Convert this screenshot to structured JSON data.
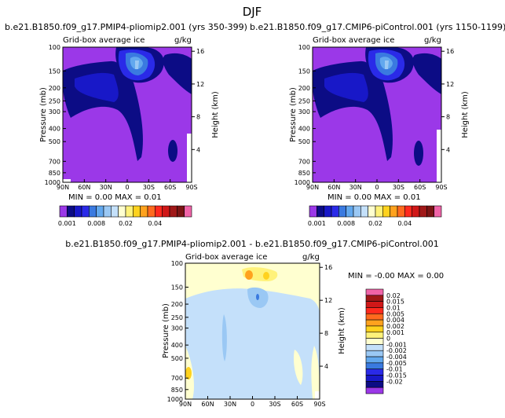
{
  "figure": {
    "season": "DJF",
    "panel1_title": "b.e21.B1850.f09_g17.PMIP4-pliomip2.001 (yrs 350-399)",
    "panel2_title": "b.e21.B1850.f09_g17.CMIP6-piControl.001 (yrs 1150-1199)",
    "diff_title": "b.e21.B1850.f09_g17.PMIP4-pliomip2.001 - b.e21.B1850.f09_g17.CMIP6-piControl.001",
    "subtitle": "Grid-box average ice",
    "units": "g/kg",
    "ylabel_left": "Pressure (mb)",
    "ylabel_right": "Height (km)",
    "panel1_minmax": "MIN =    0.00   MAX =    0.01",
    "panel2_minmax": "MIN =    0.00   MAX =    0.01",
    "diff_minmax": "MIN =   -0.00   MAX =    0.00"
  },
  "chart_data": [
    {
      "type": "heatmap",
      "name": "pliomip2",
      "title": "b.e21.B1850.f09_g17.PMIP4-pliomip2.001 (yrs 350-399)",
      "subtitle": "Grid-box average ice",
      "x_ticks": [
        "90N",
        "60N",
        "30N",
        "0",
        "30S",
        "60S",
        "90S"
      ],
      "x_values": [
        90,
        60,
        30,
        0,
        -30,
        -60,
        -90
      ],
      "y_ticks": [
        "100",
        "150",
        "200",
        "250",
        "300",
        "400",
        "500",
        "700",
        "850",
        "1000"
      ],
      "y_values": [
        100,
        150,
        200,
        250,
        300,
        400,
        500,
        700,
        850,
        1000
      ],
      "height_ticks": [
        "16",
        "12",
        "8",
        "4"
      ],
      "height_values": [
        16,
        12,
        8,
        4
      ],
      "min": 0.0,
      "max": 0.01,
      "colorbar_labels": [
        "0.001",
        "0.008",
        "0.02",
        "0.04"
      ],
      "colorbar_colors": [
        "#9b38e8",
        "#0c0c85",
        "#1818c8",
        "#2a2ae8",
        "#3a7ae0",
        "#62a8ee",
        "#9ac8f4",
        "#c4e0fa",
        "#ffffd0",
        "#fff27a",
        "#ffd21e",
        "#ffa21e",
        "#ff6a1e",
        "#ff2a1e",
        "#d01818",
        "#a01818",
        "#7a1414",
        "#f064a8"
      ]
    },
    {
      "type": "heatmap",
      "name": "piControl",
      "title": "b.e21.B1850.f09_g17.CMIP6-piControl.001 (yrs 1150-1199)",
      "subtitle": "Grid-box average ice",
      "x_ticks": [
        "90N",
        "60N",
        "30N",
        "0",
        "30S",
        "60S",
        "90S"
      ],
      "x_values": [
        90,
        60,
        30,
        0,
        -30,
        -60,
        -90
      ],
      "y_ticks": [
        "100",
        "150",
        "200",
        "250",
        "300",
        "400",
        "500",
        "700",
        "850",
        "1000"
      ],
      "y_values": [
        100,
        150,
        200,
        250,
        300,
        400,
        500,
        700,
        850,
        1000
      ],
      "height_ticks": [
        "16",
        "12",
        "8",
        "4"
      ],
      "height_values": [
        16,
        12,
        8,
        4
      ],
      "min": 0.0,
      "max": 0.01,
      "colorbar_labels": [
        "0.001",
        "0.008",
        "0.02",
        "0.04"
      ],
      "colorbar_colors": [
        "#9b38e8",
        "#0c0c85",
        "#1818c8",
        "#2a2ae8",
        "#3a7ae0",
        "#62a8ee",
        "#9ac8f4",
        "#c4e0fa",
        "#ffffd0",
        "#fff27a",
        "#ffd21e",
        "#ffa21e",
        "#ff6a1e",
        "#ff2a1e",
        "#d01818",
        "#a01818",
        "#7a1414",
        "#f064a8"
      ]
    },
    {
      "type": "heatmap",
      "name": "difference",
      "title": "b.e21.B1850.f09_g17.PMIP4-pliomip2.001 - b.e21.B1850.f09_g17.CMIP6-piControl.001",
      "subtitle": "Grid-box average ice",
      "x_ticks": [
        "90N",
        "60N",
        "30N",
        "0",
        "30S",
        "60S",
        "90S"
      ],
      "x_values": [
        90,
        60,
        30,
        0,
        -30,
        -60,
        -90
      ],
      "y_ticks": [
        "100",
        "150",
        "200",
        "250",
        "300",
        "400",
        "500",
        "700",
        "850",
        "1000"
      ],
      "y_values": [
        100,
        150,
        200,
        250,
        300,
        400,
        500,
        700,
        850,
        1000
      ],
      "height_ticks": [
        "16",
        "12",
        "8",
        "4"
      ],
      "height_values": [
        16,
        12,
        8,
        4
      ],
      "min": -0.0,
      "max": 0.0,
      "colorbar_labels": [
        "0.02",
        "0.015",
        "0.01",
        "0.005",
        "0.004",
        "0.002",
        "0.001",
        "0",
        "-0.001",
        "-0.002",
        "-0.004",
        "-0.005",
        "-0.01",
        "-0.015",
        "-0.02"
      ],
      "colorbar_colors": [
        "#f064a8",
        "#a01818",
        "#d01818",
        "#ff2a1e",
        "#ff6a1e",
        "#ffa21e",
        "#ffd21e",
        "#fff27a",
        "#ffffd0",
        "#c4e0fa",
        "#9ac8f4",
        "#62a8ee",
        "#3a7ae0",
        "#2a2ae8",
        "#1818c8",
        "#0c0c85",
        "#9b38e8"
      ]
    }
  ]
}
